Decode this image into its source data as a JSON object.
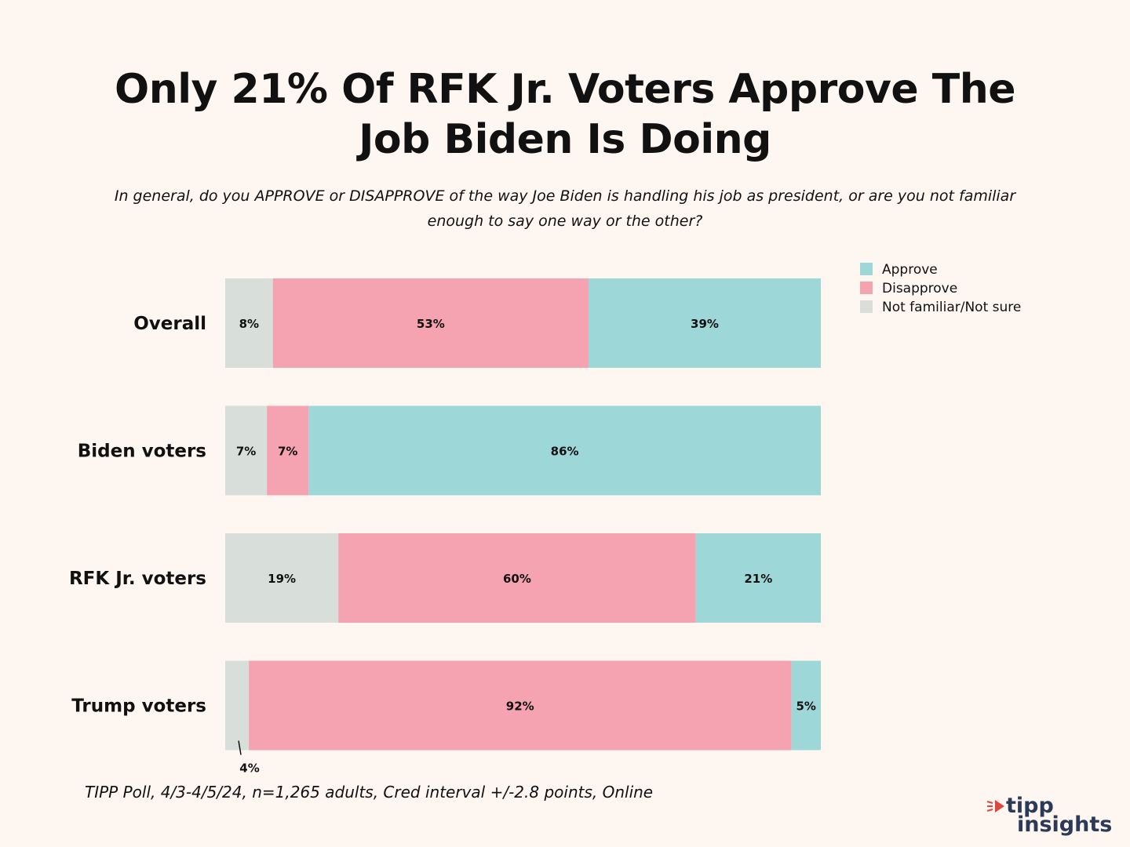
{
  "title": "Only 21% Of RFK Jr. Voters Approve The Job Biden Is Doing",
  "subtitle": "In general, do you APPROVE or DISAPPROVE of the way Joe Biden is handling his job as president, or are you not familiar enough to say one way or the other?",
  "footer": "TIPP Poll, 4/3-4/5/24, n=1,265 adults, Cred interval +/-2.8 points, Online",
  "logo": {
    "word1": "tipp",
    "word2": "insights"
  },
  "chart_data": {
    "type": "bar",
    "orientation": "horizontal",
    "stacked": true,
    "categories": [
      "Overall",
      "Biden voters",
      "RFK Jr. voters",
      "Trump voters"
    ],
    "series": [
      {
        "name": "Not familiar/Not sure",
        "color": "#d8dfda",
        "values": [
          8,
          7,
          19,
          4
        ],
        "labels": [
          "8%",
          "7%",
          "19%",
          "4%"
        ]
      },
      {
        "name": "Disapprove",
        "color": "#f5a3b0",
        "values": [
          53,
          7,
          60,
          92
        ],
        "labels": [
          "53%",
          "7%",
          "60%",
          "92%"
        ]
      },
      {
        "name": "Approve",
        "color": "#9ed7d8",
        "values": [
          39,
          86,
          21,
          5
        ],
        "labels": [
          "39%",
          "86%",
          "21%",
          "5%"
        ]
      }
    ],
    "legend_order": [
      "Approve",
      "Disapprove",
      "Not familiar/Not sure"
    ],
    "legend_placement": "top-right",
    "xlim": [
      0,
      100
    ],
    "grid": false
  }
}
